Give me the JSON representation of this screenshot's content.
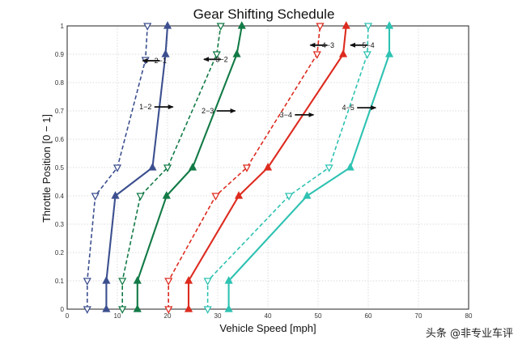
{
  "chart_data": {
    "type": "line",
    "title": "Gear Shifting Schedule",
    "xlabel": "Vehicle Speed [mph]",
    "ylabel": "Throttle Position [0 − 1]",
    "xlim": [
      0,
      80
    ],
    "ylim": [
      0,
      1
    ],
    "x_ticks": [
      "0",
      "10",
      "20",
      "30",
      "40",
      "50",
      "60",
      "70",
      "80"
    ],
    "y_ticks": [
      "0",
      "0.1",
      "0.2",
      "0.3",
      "0.4",
      "0.5",
      "0.6",
      "0.7",
      "0.8",
      "0.9",
      "1"
    ],
    "grid": true,
    "legend": "none",
    "series": [
      {
        "color": "#3c4f8f",
        "dash": false,
        "marker": "triangle-up",
        "points": [
          [
            7.8,
            0
          ],
          [
            7.8,
            0.1
          ],
          [
            9.6,
            0.4
          ],
          [
            17.0,
            0.5
          ],
          [
            19.6,
            0.9
          ],
          [
            20.0,
            1.0
          ]
        ]
      },
      {
        "color": "#3c4f8f",
        "dash": true,
        "marker": "triangle-down",
        "points": [
          [
            4.0,
            0
          ],
          [
            4.0,
            0.1
          ],
          [
            5.6,
            0.4
          ],
          [
            10.0,
            0.5
          ],
          [
            15.6,
            0.88
          ],
          [
            16.0,
            1.0
          ]
        ]
      },
      {
        "color": "#127a46",
        "dash": false,
        "marker": "triangle-up",
        "points": [
          [
            14.0,
            0
          ],
          [
            14.0,
            0.1
          ],
          [
            19.8,
            0.4
          ],
          [
            25.0,
            0.5
          ],
          [
            33.8,
            0.9
          ],
          [
            34.8,
            1.0
          ]
        ]
      },
      {
        "color": "#127a46",
        "dash": true,
        "marker": "triangle-down",
        "points": [
          [
            11.0,
            0
          ],
          [
            11.0,
            0.1
          ],
          [
            14.6,
            0.4
          ],
          [
            20.0,
            0.5
          ],
          [
            29.8,
            0.9
          ],
          [
            30.6,
            1.0
          ]
        ]
      },
      {
        "color": "#dd2b1f",
        "dash": false,
        "marker": "triangle-up",
        "points": [
          [
            24.2,
            0
          ],
          [
            24.2,
            0.1
          ],
          [
            34.2,
            0.4
          ],
          [
            40.0,
            0.5
          ],
          [
            55.0,
            0.9
          ],
          [
            55.6,
            1.0
          ]
        ]
      },
      {
        "color": "#dd2b1f",
        "dash": true,
        "marker": "triangle-down",
        "points": [
          [
            20.2,
            0
          ],
          [
            20.2,
            0.1
          ],
          [
            29.6,
            0.4
          ],
          [
            35.8,
            0.5
          ],
          [
            49.8,
            0.9
          ],
          [
            50.4,
            1.0
          ]
        ]
      },
      {
        "color": "#2ec2b2",
        "dash": false,
        "marker": "triangle-up",
        "points": [
          [
            32.2,
            0
          ],
          [
            32.2,
            0.1
          ],
          [
            47.8,
            0.4
          ],
          [
            56.4,
            0.5
          ],
          [
            64.2,
            0.9
          ],
          [
            64.2,
            1.0
          ]
        ]
      },
      {
        "color": "#2ec2b2",
        "dash": true,
        "marker": "triangle-down",
        "points": [
          [
            28.0,
            0
          ],
          [
            28.0,
            0.1
          ],
          [
            44.2,
            0.4
          ],
          [
            52.2,
            0.5
          ],
          [
            59.8,
            0.9
          ],
          [
            60.0,
            1.0
          ]
        ]
      }
    ],
    "annotations": [
      {
        "text": "2−1",
        "arrow": "left",
        "x": 18.6,
        "y": 0.877
      },
      {
        "text": "3−2",
        "arrow": "left",
        "x": 30.8,
        "y": 0.882
      },
      {
        "text": "4−3",
        "arrow": "left",
        "x": 52.0,
        "y": 0.932
      },
      {
        "text": "5−4",
        "arrow": "left",
        "x": 60.0,
        "y": 0.932
      },
      {
        "text": "1−2",
        "arrow": "right",
        "x": 15.6,
        "y": 0.714
      },
      {
        "text": "2−3",
        "arrow": "right",
        "x": 28.0,
        "y": 0.7
      },
      {
        "text": "3−4",
        "arrow": "right",
        "x": 43.6,
        "y": 0.686
      },
      {
        "text": "4−5",
        "arrow": "right",
        "x": 56.0,
        "y": 0.711
      }
    ]
  },
  "watermark": {
    "text": "头条 @非专业车评"
  }
}
